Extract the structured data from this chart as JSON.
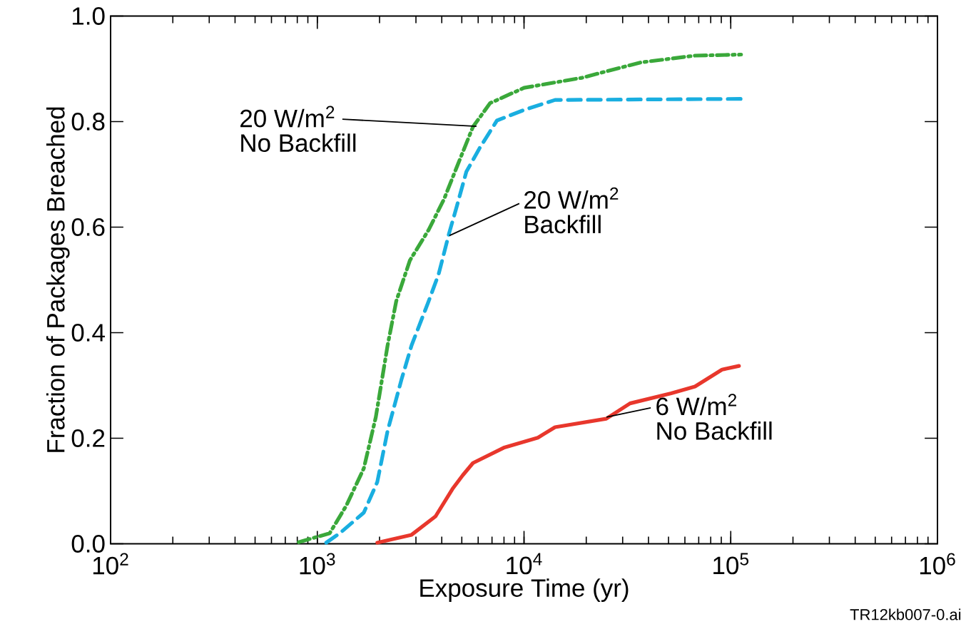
{
  "chart_data": {
    "type": "line",
    "xlabel": "Exposure Time (yr)",
    "ylabel": "Fraction of Packages Breached",
    "log": "x",
    "xlim": [
      100,
      1000000
    ],
    "ylim": [
      0,
      1.0
    ],
    "xticks": [
      {
        "value": 100,
        "label": "10$^{2}$"
      },
      {
        "value": 1000,
        "label": "10$^{3}$"
      },
      {
        "value": 10000,
        "label": "10$^{4}$"
      },
      {
        "value": 100000,
        "label": "10$^{5}$"
      },
      {
        "value": 1000000,
        "label": "10$^{6}$"
      }
    ],
    "yticks": [
      {
        "value": 0,
        "label": "0.0"
      },
      {
        "value": 0.2,
        "label": "0.2"
      },
      {
        "value": 0.4,
        "label": "0.4"
      },
      {
        "value": 0.6,
        "label": "0.6"
      },
      {
        "value": 0.8,
        "label": "0.8"
      },
      {
        "value": 1.0,
        "label": "1.0"
      }
    ],
    "grid": false,
    "marker": "none",
    "series": [
      {
        "color": "#3aa83a",
        "line_style": "dashdot",
        "x": [
          813,
          1148,
          1380,
          1679,
          1919,
          2188,
          2410,
          2805,
          3459,
          4102,
          4775,
          5662,
          6855,
          10000,
          19050,
          36560,
          67140,
          112200
        ],
        "values": [
          0.003,
          0.02,
          0.072,
          0.143,
          0.24,
          0.376,
          0.46,
          0.537,
          0.595,
          0.653,
          0.718,
          0.79,
          0.835,
          0.864,
          0.883,
          0.912,
          0.925,
          0.927
        ]
      },
      {
        "color": "#19aee0",
        "line_style": "dashed",
        "x": [
          1104,
          1285,
          1679,
          1950,
          2188,
          2553,
          2858,
          3459,
          3864,
          4345,
          4688,
          5260,
          6124,
          7396,
          10000,
          14130,
          112200
        ],
        "values": [
          0.002,
          0.02,
          0.059,
          0.117,
          0.214,
          0.311,
          0.376,
          0.46,
          0.511,
          0.589,
          0.634,
          0.705,
          0.751,
          0.802,
          0.822,
          0.841,
          0.843
        ]
      },
      {
        "color": "#e8372c",
        "line_style": "solid",
        "x": [
          1950,
          2858,
          3733,
          4508,
          5058,
          5662,
          7980,
          11670,
          14130,
          25000,
          32580,
          51520,
          67140,
          90780,
          109600
        ],
        "values": [
          0.002,
          0.017,
          0.052,
          0.104,
          0.13,
          0.153,
          0.182,
          0.201,
          0.221,
          0.237,
          0.266,
          0.285,
          0.298,
          0.33,
          0.337
        ]
      }
    ],
    "annotations": [
      {
        "text": "20 W/m$^{2}$",
        "x": 5890,
        "y": 0.791
      },
      "No Backfill",
      {
        "text": "20 W/m$^{2}$",
        "x": 4355,
        "y": 0.584
      },
      "Backfill",
      {
        "text": "6 W/m$^{2}$",
        "x": 25060,
        "y": 0.24
      },
      "No Backfill",
      "TR12kb007-0.ai"
    ]
  }
}
